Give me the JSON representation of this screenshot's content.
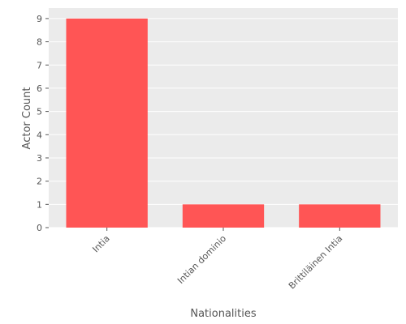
{
  "chart_data": {
    "type": "bar",
    "categories": [
      "Intia",
      "Intian dominio",
      "Brittiläinen Intia"
    ],
    "values": [
      9,
      1,
      1
    ],
    "xlabel": "Nationalities",
    "ylabel": "Actor Count",
    "ylim": [
      0,
      9.45
    ],
    "yticks": [
      0,
      1,
      2,
      3,
      4,
      5,
      6,
      7,
      8,
      9
    ],
    "grid": true,
    "legend": "none",
    "bar_color": "#ff5555",
    "plot_background": "#ebebeb",
    "grid_color": "#ffffff"
  }
}
